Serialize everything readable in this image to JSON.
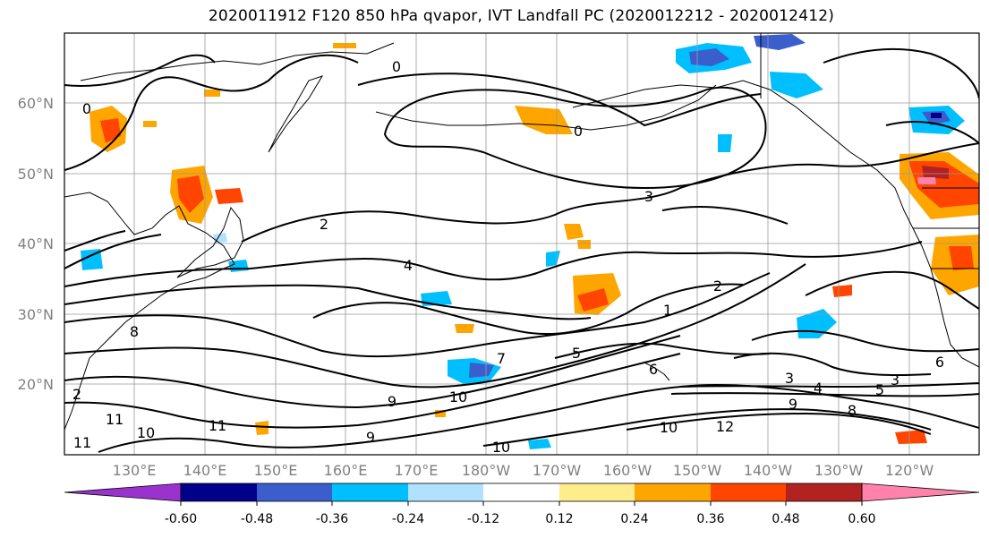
{
  "title": "2020011912 F120 850 hPa qvapor, IVT Landfall PC (2020012212 - 2020012412)",
  "lat_labels": [
    "60°N",
    "50°N",
    "40°N",
    "30°N",
    "20°N"
  ],
  "lon_labels": [
    "130°E",
    "140°E",
    "150°E",
    "160°E",
    "170°E",
    "180°W",
    "170°W",
    "160°W",
    "150°W",
    "140°W",
    "130°W",
    "120°W"
  ],
  "contour_labels": [
    "0",
    "0",
    "0",
    "2",
    "3",
    "4",
    "1",
    "2",
    "6",
    "5",
    "7",
    "8",
    "9",
    "10",
    "11",
    "10",
    "11",
    "9",
    "10",
    "12",
    "9",
    "10",
    "8",
    "3",
    "4",
    "5",
    "3",
    "6",
    "11",
    "2"
  ],
  "colorbar": {
    "ticks": [
      "-0.60",
      "-0.48",
      "-0.36",
      "-0.24",
      "-0.12",
      "0.12",
      "0.24",
      "0.36",
      "0.48",
      "0.60"
    ],
    "colors": {
      "under": "#9a32cd",
      "bins": [
        "#00008b",
        "#3a5fcd",
        "#00bfff",
        "#b0e2ff",
        "#ffffff",
        "#ffec8b",
        "#ffa500",
        "#ff4500",
        "#b22222"
      ],
      "over": "#ff82ab"
    }
  }
}
